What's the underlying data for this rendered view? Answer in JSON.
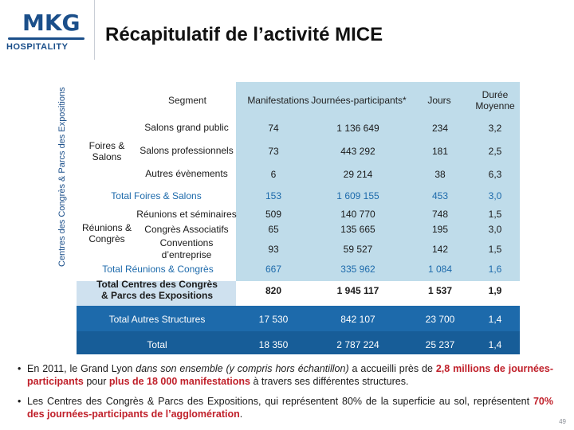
{
  "logo": {
    "main": "MKG",
    "sub": "HOSPITALITY"
  },
  "title": "Récapitulatif de l’activité MICE",
  "side_label": "Centres des Congrès & Parcs des Expositions",
  "table": {
    "headers": {
      "segment": "Segment",
      "manifestations": "Manifestations",
      "journees": "Journées-participants*",
      "jours": "Jours",
      "duree_l1": "Durée",
      "duree_l2": "Moyenne"
    },
    "group_foires_l1": "Foires &",
    "group_foires_l2": "Salons",
    "group_reunions_l1": "Réunions &",
    "group_reunions_l2": "Congrès",
    "rows": [
      {
        "label": "Salons grand public",
        "m": "74",
        "j": "1 136 649",
        "d": "234",
        "dm": "3,2"
      },
      {
        "label": "Salons professionnels",
        "m": "73",
        "j": "443 292",
        "d": "181",
        "dm": "2,5"
      },
      {
        "label": "Autres évènements",
        "m": "6",
        "j": "29 214",
        "d": "38",
        "dm": "6,3"
      },
      {
        "label": "Total Foires & Salons",
        "m": "153",
        "j": "1 609 155",
        "d": "453",
        "dm": "3,0"
      },
      {
        "label": "Réunions et séminaires",
        "m": "509",
        "j": "140 770",
        "d": "748",
        "dm": "1,5"
      },
      {
        "label": "Congrès Associatifs",
        "m": "65",
        "j": "135 665",
        "d": "195",
        "dm": "3,0"
      },
      {
        "label_l1": "Conventions",
        "label_l2": "d’entreprise",
        "m": "93",
        "j": "59 527",
        "d": "142",
        "dm": "1,5"
      },
      {
        "label": "Total Réunions & Congrès",
        "m": "667",
        "j": "335 962",
        "d": "1 084",
        "dm": "1,6"
      },
      {
        "label_l1": "Total Centres des Congrès",
        "label_l2": "& Parcs des Expositions",
        "m": "820",
        "j": "1 945 117",
        "d": "1 537",
        "dm": "1,9"
      },
      {
        "label": "Total Autres Structures",
        "m": "17 530",
        "j": "842 107",
        "d": "23 700",
        "dm": "1,4"
      },
      {
        "label": "Total",
        "m": "18 350",
        "j": "2 787 224",
        "d": "25 237",
        "dm": "1,4"
      }
    ]
  },
  "bullets": [
    {
      "dot": "•",
      "a": "En 2011, le Grand Lyon ",
      "a_it": "dans son ensemble (y compris hors échantillon)",
      "b": " a accueilli près de ",
      "b_red": "2,8 millions de journées-participants",
      "c": " pour ",
      "c_red": "plus de 18 000 manifestations",
      "d": " à travers ses différentes structures."
    },
    {
      "dot": "•",
      "a": "Les Centres des Congrès & Parcs des Expositions, qui représentent 80% de la superficie au sol, représentent ",
      "a_red": "70%  des journées-participants de l’agglomération",
      "b": "."
    }
  ],
  "page_number": "49"
}
